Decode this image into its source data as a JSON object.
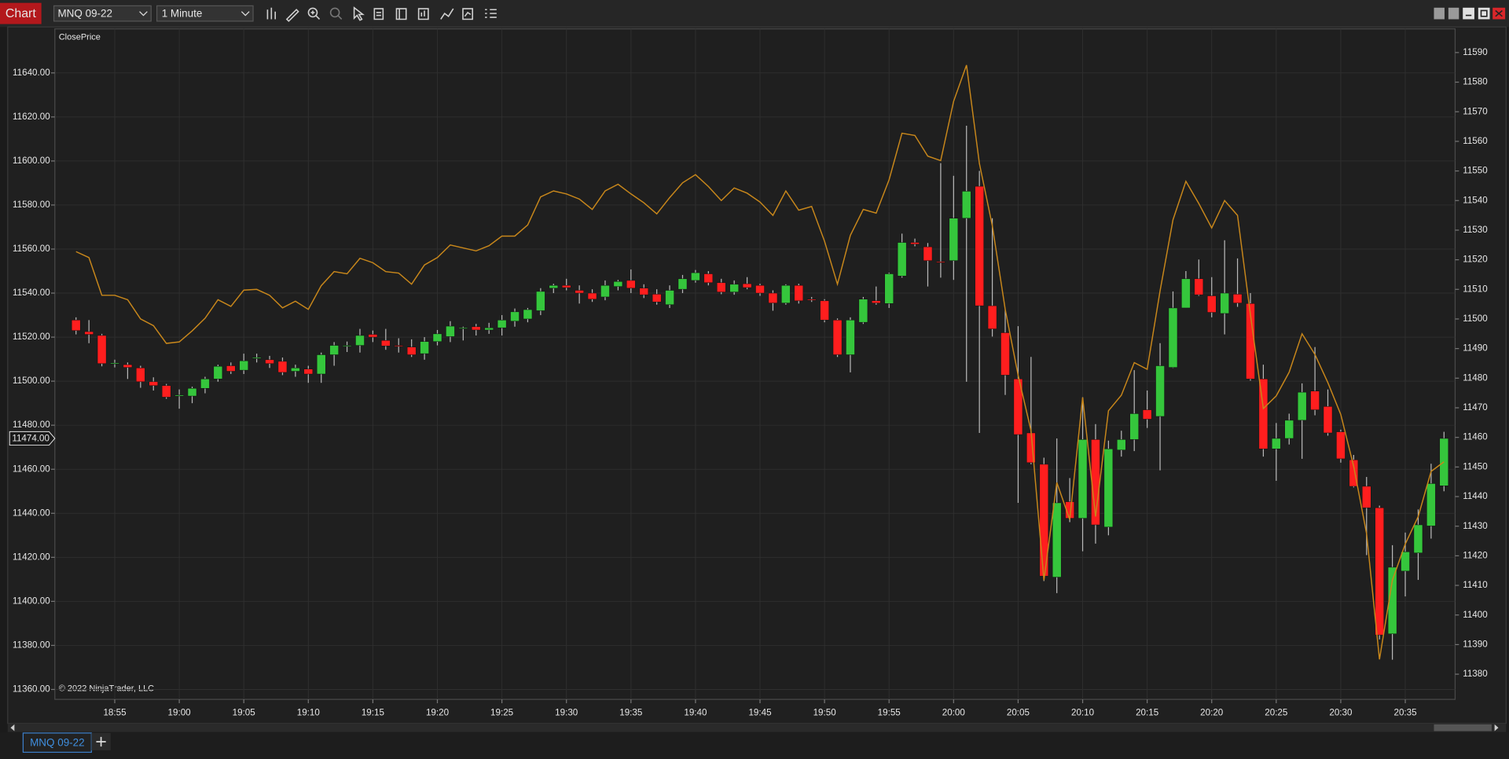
{
  "window": {
    "title": "Chart",
    "instrument": "MNQ 09-22",
    "interval": "1 Minute",
    "tab": "MNQ 09-22"
  },
  "chart_data": {
    "type": "candlestick",
    "watermark": "© 2022 NinjaTrader, LLC",
    "categories": [
      null,
      null,
      null,
      "18:55",
      null,
      null,
      null,
      null,
      "19:00",
      null,
      null,
      null,
      null,
      "19:05",
      null,
      null,
      null,
      null,
      "19:10",
      null,
      null,
      null,
      null,
      "19:15",
      null,
      null,
      null,
      null,
      "19:20",
      null,
      null,
      null,
      null,
      "19:25",
      null,
      null,
      null,
      null,
      "19:30",
      null,
      null,
      null,
      null,
      "19:35",
      null,
      null,
      null,
      null,
      "19:40",
      null,
      null,
      null,
      null,
      "19:45",
      null,
      null,
      null,
      null,
      "19:50",
      null,
      null,
      null,
      null,
      "19:55",
      null,
      null,
      null,
      null,
      "20:00",
      null,
      null,
      null,
      null,
      "20:05",
      null,
      null,
      null,
      null,
      "20:10",
      null,
      null,
      null,
      null,
      "20:15",
      null,
      null,
      null,
      null,
      "20:20",
      null,
      null,
      null,
      null,
      "20:25",
      null,
      null,
      null,
      null,
      "20:30",
      null,
      null,
      null,
      null,
      "20:35",
      null,
      null,
      null
    ],
    "open": [
      11527.75,
      11522.5,
      11520.75,
      11508,
      11507.5,
      11506,
      11499.75,
      11498,
      11493.25,
      11493.25,
      11496.75,
      11501,
      11507,
      11505,
      11510.5,
      11509.75,
      11509,
      11504.5,
      11505.5,
      11503.25,
      11512,
      11516,
      11516.25,
      11521.25,
      11518.5,
      11516.25,
      11515.5,
      11512.5,
      11518,
      11520.25,
      11524,
      11524.75,
      11523.25,
      11524.25,
      11527.25,
      11528.25,
      11532,
      11542.25,
      11543.5,
      11541.25,
      11540,
      11538.25,
      11543,
      11545.75,
      11542.25,
      11539.5,
      11534.75,
      11541.75,
      11545.75,
      11548.75,
      11544.75,
      11540.5,
      11544.25,
      11543.5,
      11540,
      11535.5,
      11543.5,
      11537.25,
      11536.5,
      11527.75,
      11512,
      11526.75,
      11536.5,
      11535.25,
      11547.75,
      11563,
      11561,
      11554.25,
      11554.75,
      11574,
      11588.5,
      11534.25,
      11522,
      11501,
      11476.5,
      11462.25,
      11411,
      11445.25,
      11437.75,
      11473.5,
      11433.75,
      11468.75,
      11473.5,
      11487,
      11484,
      11506.25,
      11533.25,
      11546.5,
      11538.75,
      11530.75,
      11539.5,
      11535.25,
      11501,
      11469.25,
      11474,
      11482.25,
      11495.5,
      11488.5,
      11477,
      11464.25,
      11452.25,
      11442.5,
      11385.25,
      11413.75,
      11422,
      11434.25,
      11452.5
    ],
    "high": [
      11529,
      11527.75,
      11521.5,
      11509.75,
      11508.5,
      11507,
      11501.75,
      11498.75,
      11496.25,
      11497.5,
      11502,
      11507.5,
      11508.5,
      11512.5,
      11512.5,
      11511.5,
      11510.75,
      11507.5,
      11507,
      11513,
      11517.75,
      11518,
      11523.75,
      11523,
      11523.75,
      11519.5,
      11519,
      11520,
      11523.25,
      11527.25,
      11524.75,
      11526,
      11526.5,
      11530,
      11533,
      11533.25,
      11542.25,
      11544.25,
      11546.5,
      11543.5,
      11541.75,
      11545.75,
      11546,
      11550.75,
      11544,
      11541.75,
      11543.5,
      11548.25,
      11550.5,
      11550,
      11546.5,
      11545.75,
      11547.25,
      11544.25,
      11541.25,
      11544,
      11544.25,
      11538.25,
      11537.25,
      11528.5,
      11529,
      11538.25,
      11543,
      11549.25,
      11567,
      11564.75,
      11562.75,
      11599,
      11593.25,
      11616,
      11595.5,
      11574,
      11532.5,
      11525,
      11511,
      11465.25,
      11474,
      11456,
      11492.75,
      11480.5,
      11473,
      11477.5,
      11505,
      11495.75,
      11517.25,
      11540.75,
      11550,
      11555.25,
      11547.25,
      11564,
      11555.75,
      11540,
      11507.5,
      11481,
      11485.25,
      11499,
      11515.5,
      11496.25,
      11478,
      11466.5,
      11456.5,
      11443.5,
      11425.5,
      11431.25,
      11441.75,
      11462.5,
      11477
    ],
    "low": [
      11521.25,
      11517.25,
      11506.75,
      11506.25,
      11501,
      11497,
      11495.75,
      11492,
      11487.5,
      11490,
      11494.5,
      11499.75,
      11503.25,
      11503.25,
      11508.5,
      11506,
      11502.75,
      11502,
      11499.25,
      11499.25,
      11507,
      11513.25,
      11513,
      11517.75,
      11514.25,
      11513,
      11511,
      11509.75,
      11516.25,
      11517.75,
      11518.5,
      11520.75,
      11521.5,
      11520.75,
      11524.75,
      11526.75,
      11530,
      11540,
      11541.25,
      11535.25,
      11536,
      11536.75,
      11541.25,
      11540,
      11537.75,
      11534.75,
      11533.25,
      11540,
      11544.75,
      11543.5,
      11539.5,
      11539.25,
      11541.75,
      11538.75,
      11532,
      11534.75,
      11535.25,
      11536,
      11526.75,
      11511,
      11504,
      11526,
      11534.75,
      11533.25,
      11547,
      11561.25,
      11543,
      11547,
      11546,
      11499.75,
      11476.5,
      11520.25,
      11493.75,
      11444.75,
      11462.25,
      11409.25,
      11403.75,
      11436,
      11422.75,
      11426.25,
      11430,
      11465.75,
      11468.25,
      11478.75,
      11459.5,
      11506,
      11533.25,
      11538.75,
      11529,
      11521.25,
      11533.75,
      11500.25,
      11465.75,
      11454.75,
      11471.25,
      11464.75,
      11484.5,
      11475.25,
      11463,
      11451.75,
      11421,
      11382.75,
      11373.5,
      11402.25,
      11409.75,
      11428.5,
      11450
    ],
    "close": [
      11523,
      11521.25,
      11508,
      11508.25,
      11506.25,
      11499.75,
      11498,
      11492.75,
      11493.75,
      11496.75,
      11501,
      11506.75,
      11504.5,
      11509.25,
      11510.75,
      11508,
      11504,
      11506,
      11503.25,
      11512,
      11516.25,
      11516.25,
      11520.75,
      11520,
      11516,
      11516,
      11512,
      11518,
      11521.5,
      11525,
      11524.25,
      11523.25,
      11524.25,
      11527.75,
      11531.5,
      11532.5,
      11540.75,
      11543.5,
      11542.5,
      11540,
      11537.25,
      11543.5,
      11545.25,
      11542.25,
      11539.25,
      11536,
      11541.25,
      11546.5,
      11549.25,
      11544.75,
      11540.5,
      11544,
      11542.5,
      11540,
      11535.5,
      11543.5,
      11536.5,
      11537,
      11527.75,
      11512,
      11527.75,
      11537.25,
      11535.5,
      11548.75,
      11563,
      11562.25,
      11554.75,
      11554,
      11574,
      11586.25,
      11534.25,
      11523.75,
      11502.75,
      11475.75,
      11463,
      11411.5,
      11444.75,
      11437.75,
      11473.5,
      11434.75,
      11469.25,
      11473.5,
      11485.25,
      11482.75,
      11507,
      11533.25,
      11546.5,
      11539.25,
      11531.25,
      11540,
      11535.5,
      11501,
      11469.25,
      11474,
      11482.25,
      11495,
      11487,
      11476.5,
      11464.75,
      11452.25,
      11442.5,
      11384.75,
      11415.5,
      11422.5,
      11434.75,
      11453.5,
      11474
    ],
    "up_color": "#35c63c",
    "down_color": "#ff1e1e",
    "wick_color": "#b9b9b9",
    "series": [
      {
        "name": "ClosePrice",
        "type": "line",
        "color": "#c8871b",
        "axis": "y2",
        "values": [
          11522.75,
          11520.75,
          11508,
          11508,
          11506.5,
          11500,
          11497.75,
          11491.75,
          11492.25,
          11496,
          11500.25,
          11506.5,
          11504.25,
          11509.75,
          11510,
          11508,
          11503.75,
          11506,
          11503.25,
          11511.25,
          11516,
          11515.25,
          11520.5,
          11519,
          11516,
          11515.5,
          11511.75,
          11518.25,
          11520.75,
          11525,
          11524,
          11523,
          11524.75,
          11528,
          11528,
          11531.75,
          11541.25,
          11543.25,
          11542.25,
          11540.5,
          11537,
          11543.25,
          11545.5,
          11542.25,
          11539.25,
          11535.5,
          11541,
          11546,
          11548.75,
          11544.75,
          11540,
          11544.25,
          11542.5,
          11539.5,
          11535,
          11543.25,
          11536.75,
          11538,
          11526.25,
          11511.75,
          11528.25,
          11537,
          11535.75,
          11547,
          11562.75,
          11562,
          11555,
          11553.5,
          11573.5,
          11585.75,
          11552.5,
          11531.5,
          11503.25,
          11481,
          11462.25,
          11411.75,
          11444.75,
          11432.25,
          11473.5,
          11433.25,
          11469,
          11474.25,
          11485.25,
          11483,
          11509.5,
          11533.5,
          11546.5,
          11539,
          11530.75,
          11540,
          11535,
          11501.5,
          11469.75,
          11474,
          11482,
          11495,
          11488,
          11478.5,
          11467.75,
          11450.25,
          11427.5,
          11385,
          11411.75,
          11424,
          11433.25,
          11448.5,
          11451.75
        ]
      }
    ],
    "ylim": [
      11355.5,
      11660
    ],
    "yticks": [
      {
        "value": 11360,
        "label": "11360.00"
      },
      {
        "value": 11380,
        "label": "11380.00"
      },
      {
        "value": 11400,
        "label": "11400.00"
      },
      {
        "value": 11420,
        "label": "11420.00"
      },
      {
        "value": 11440,
        "label": "11440.00"
      },
      {
        "value": 11460,
        "label": "11460.00"
      },
      {
        "value": 11480,
        "label": "11480.00"
      },
      {
        "value": 11500,
        "label": "11500.00"
      },
      {
        "value": 11520,
        "label": "11520.00"
      },
      {
        "value": 11540,
        "label": "11540.00"
      },
      {
        "value": 11560,
        "label": "11560.00"
      },
      {
        "value": 11580,
        "label": "11580.00"
      },
      {
        "value": 11600,
        "label": "11600.00"
      },
      {
        "value": 11620,
        "label": "11620.00"
      },
      {
        "value": 11640,
        "label": "11640.00"
      }
    ],
    "y2lim": [
      11371.5,
      11598
    ],
    "y2ticks": [
      11380,
      11390,
      11400,
      11410,
      11420,
      11430,
      11440,
      11450,
      11460,
      11470,
      11480,
      11490,
      11500,
      11510,
      11520,
      11530,
      11540,
      11550,
      11560,
      11570,
      11580,
      11590
    ],
    "price_marker": {
      "value": 11474,
      "label": "11474.00"
    },
    "grid": true,
    "grid_color": "#2f2f2f"
  }
}
